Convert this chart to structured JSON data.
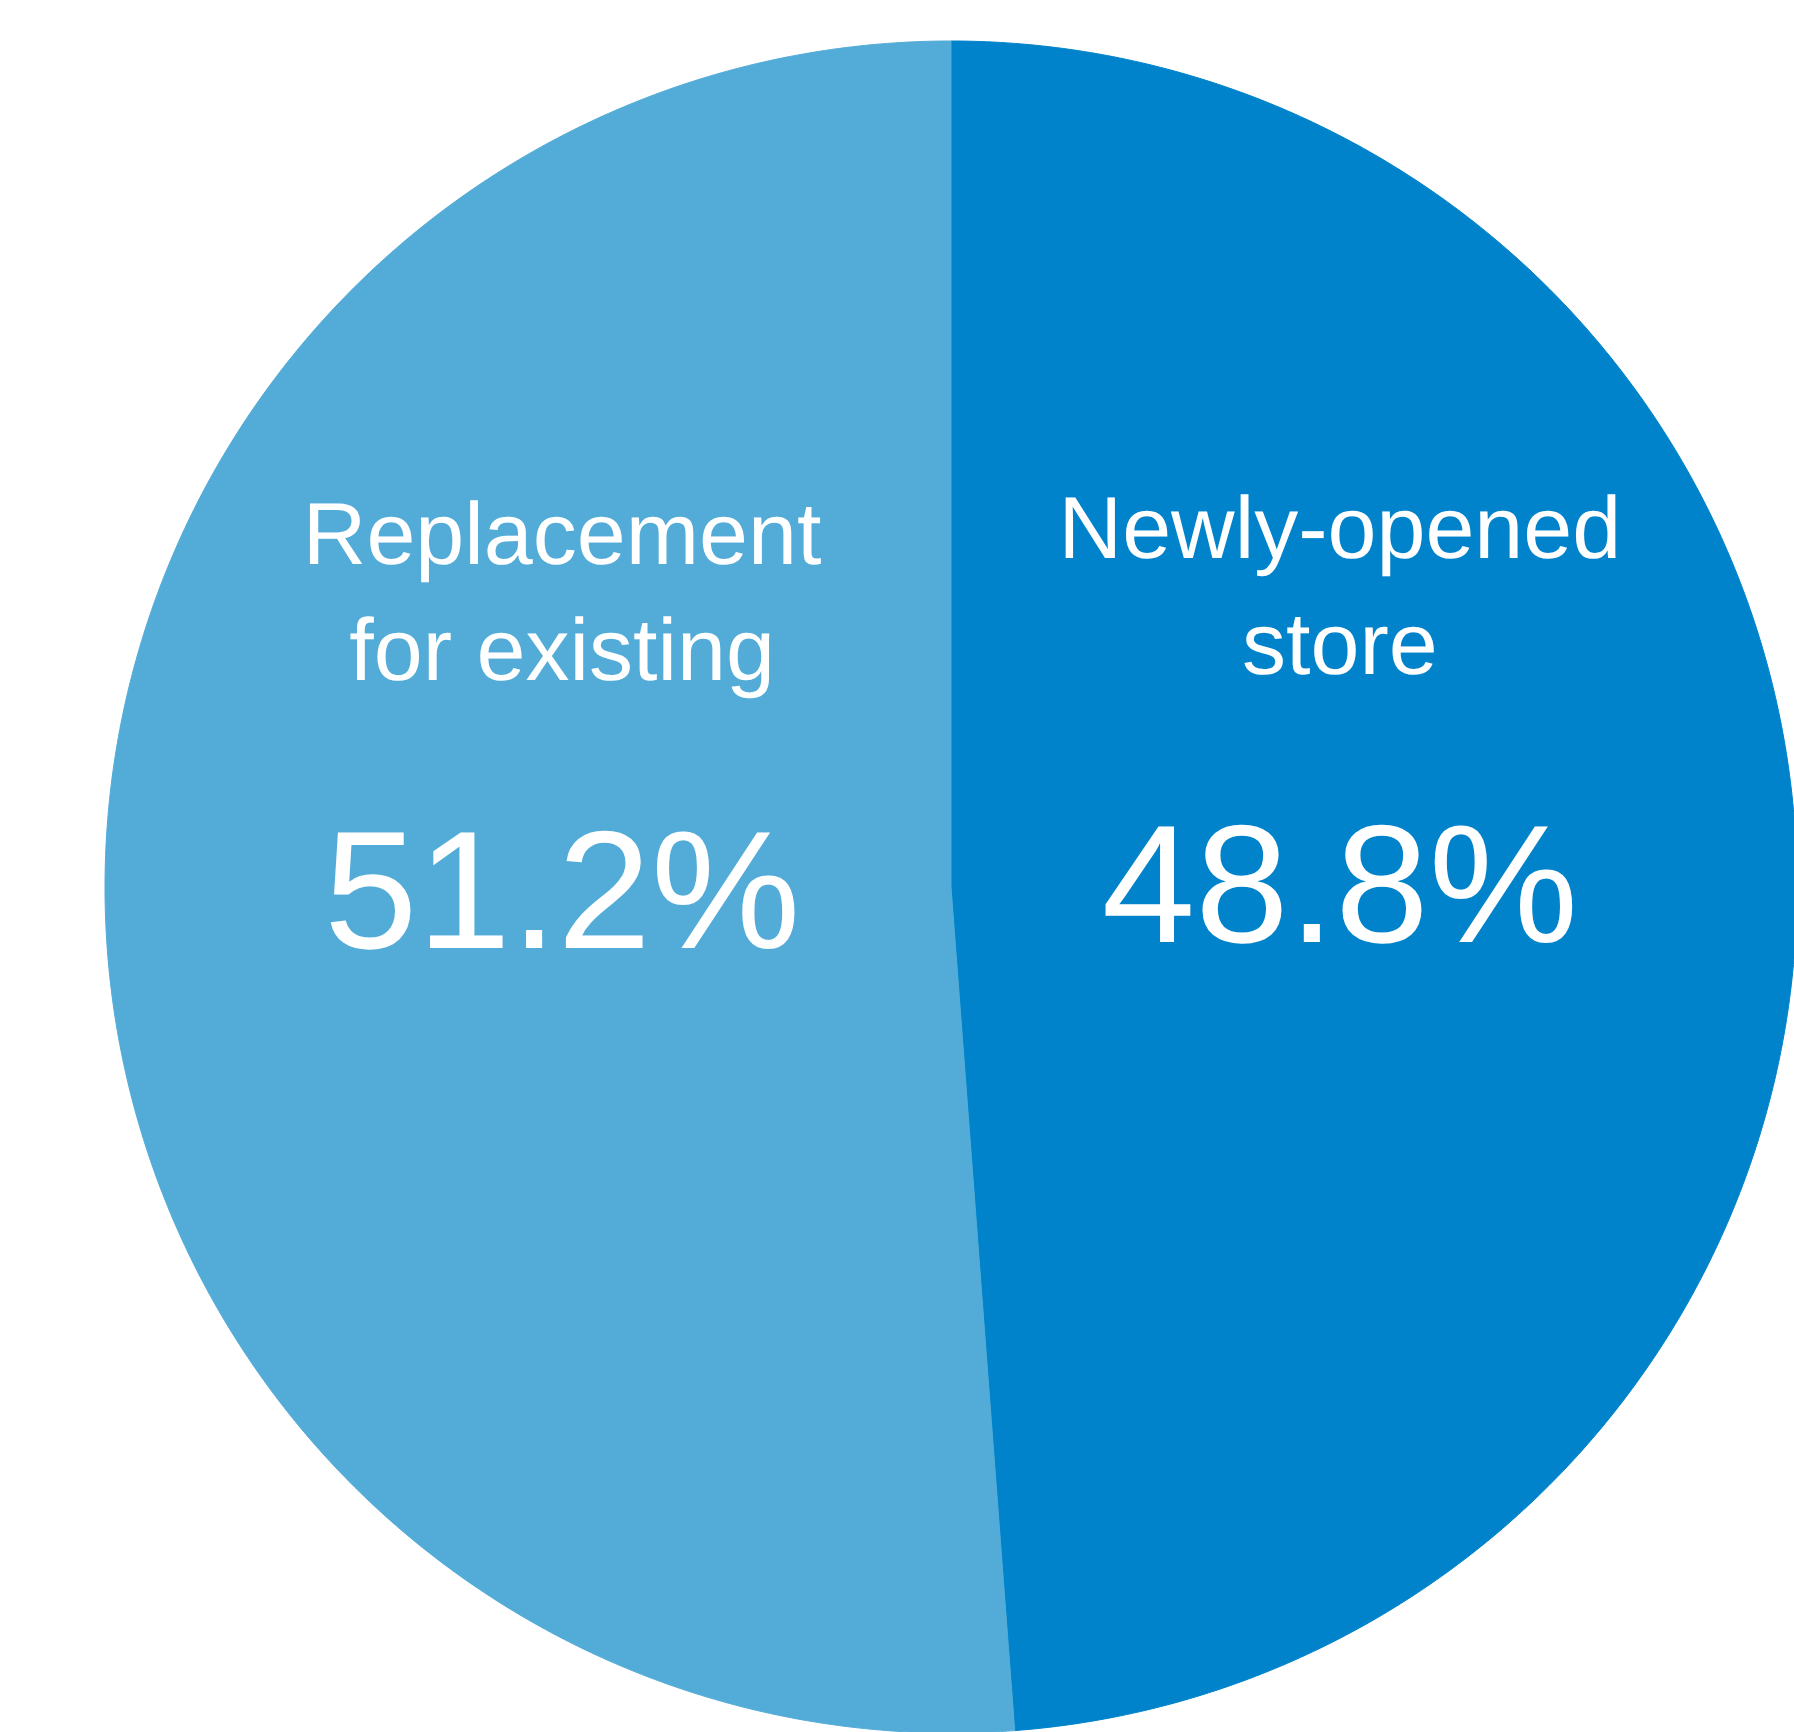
{
  "chart_data": {
    "type": "pie",
    "categories": [
      "Newly-opened store",
      "Replacement for existing"
    ],
    "values": [
      48.8,
      51.2
    ],
    "colors": [
      "#0083cb",
      "#53acd8"
    ],
    "value_labels": [
      "48.8%",
      "51.2%"
    ]
  }
}
